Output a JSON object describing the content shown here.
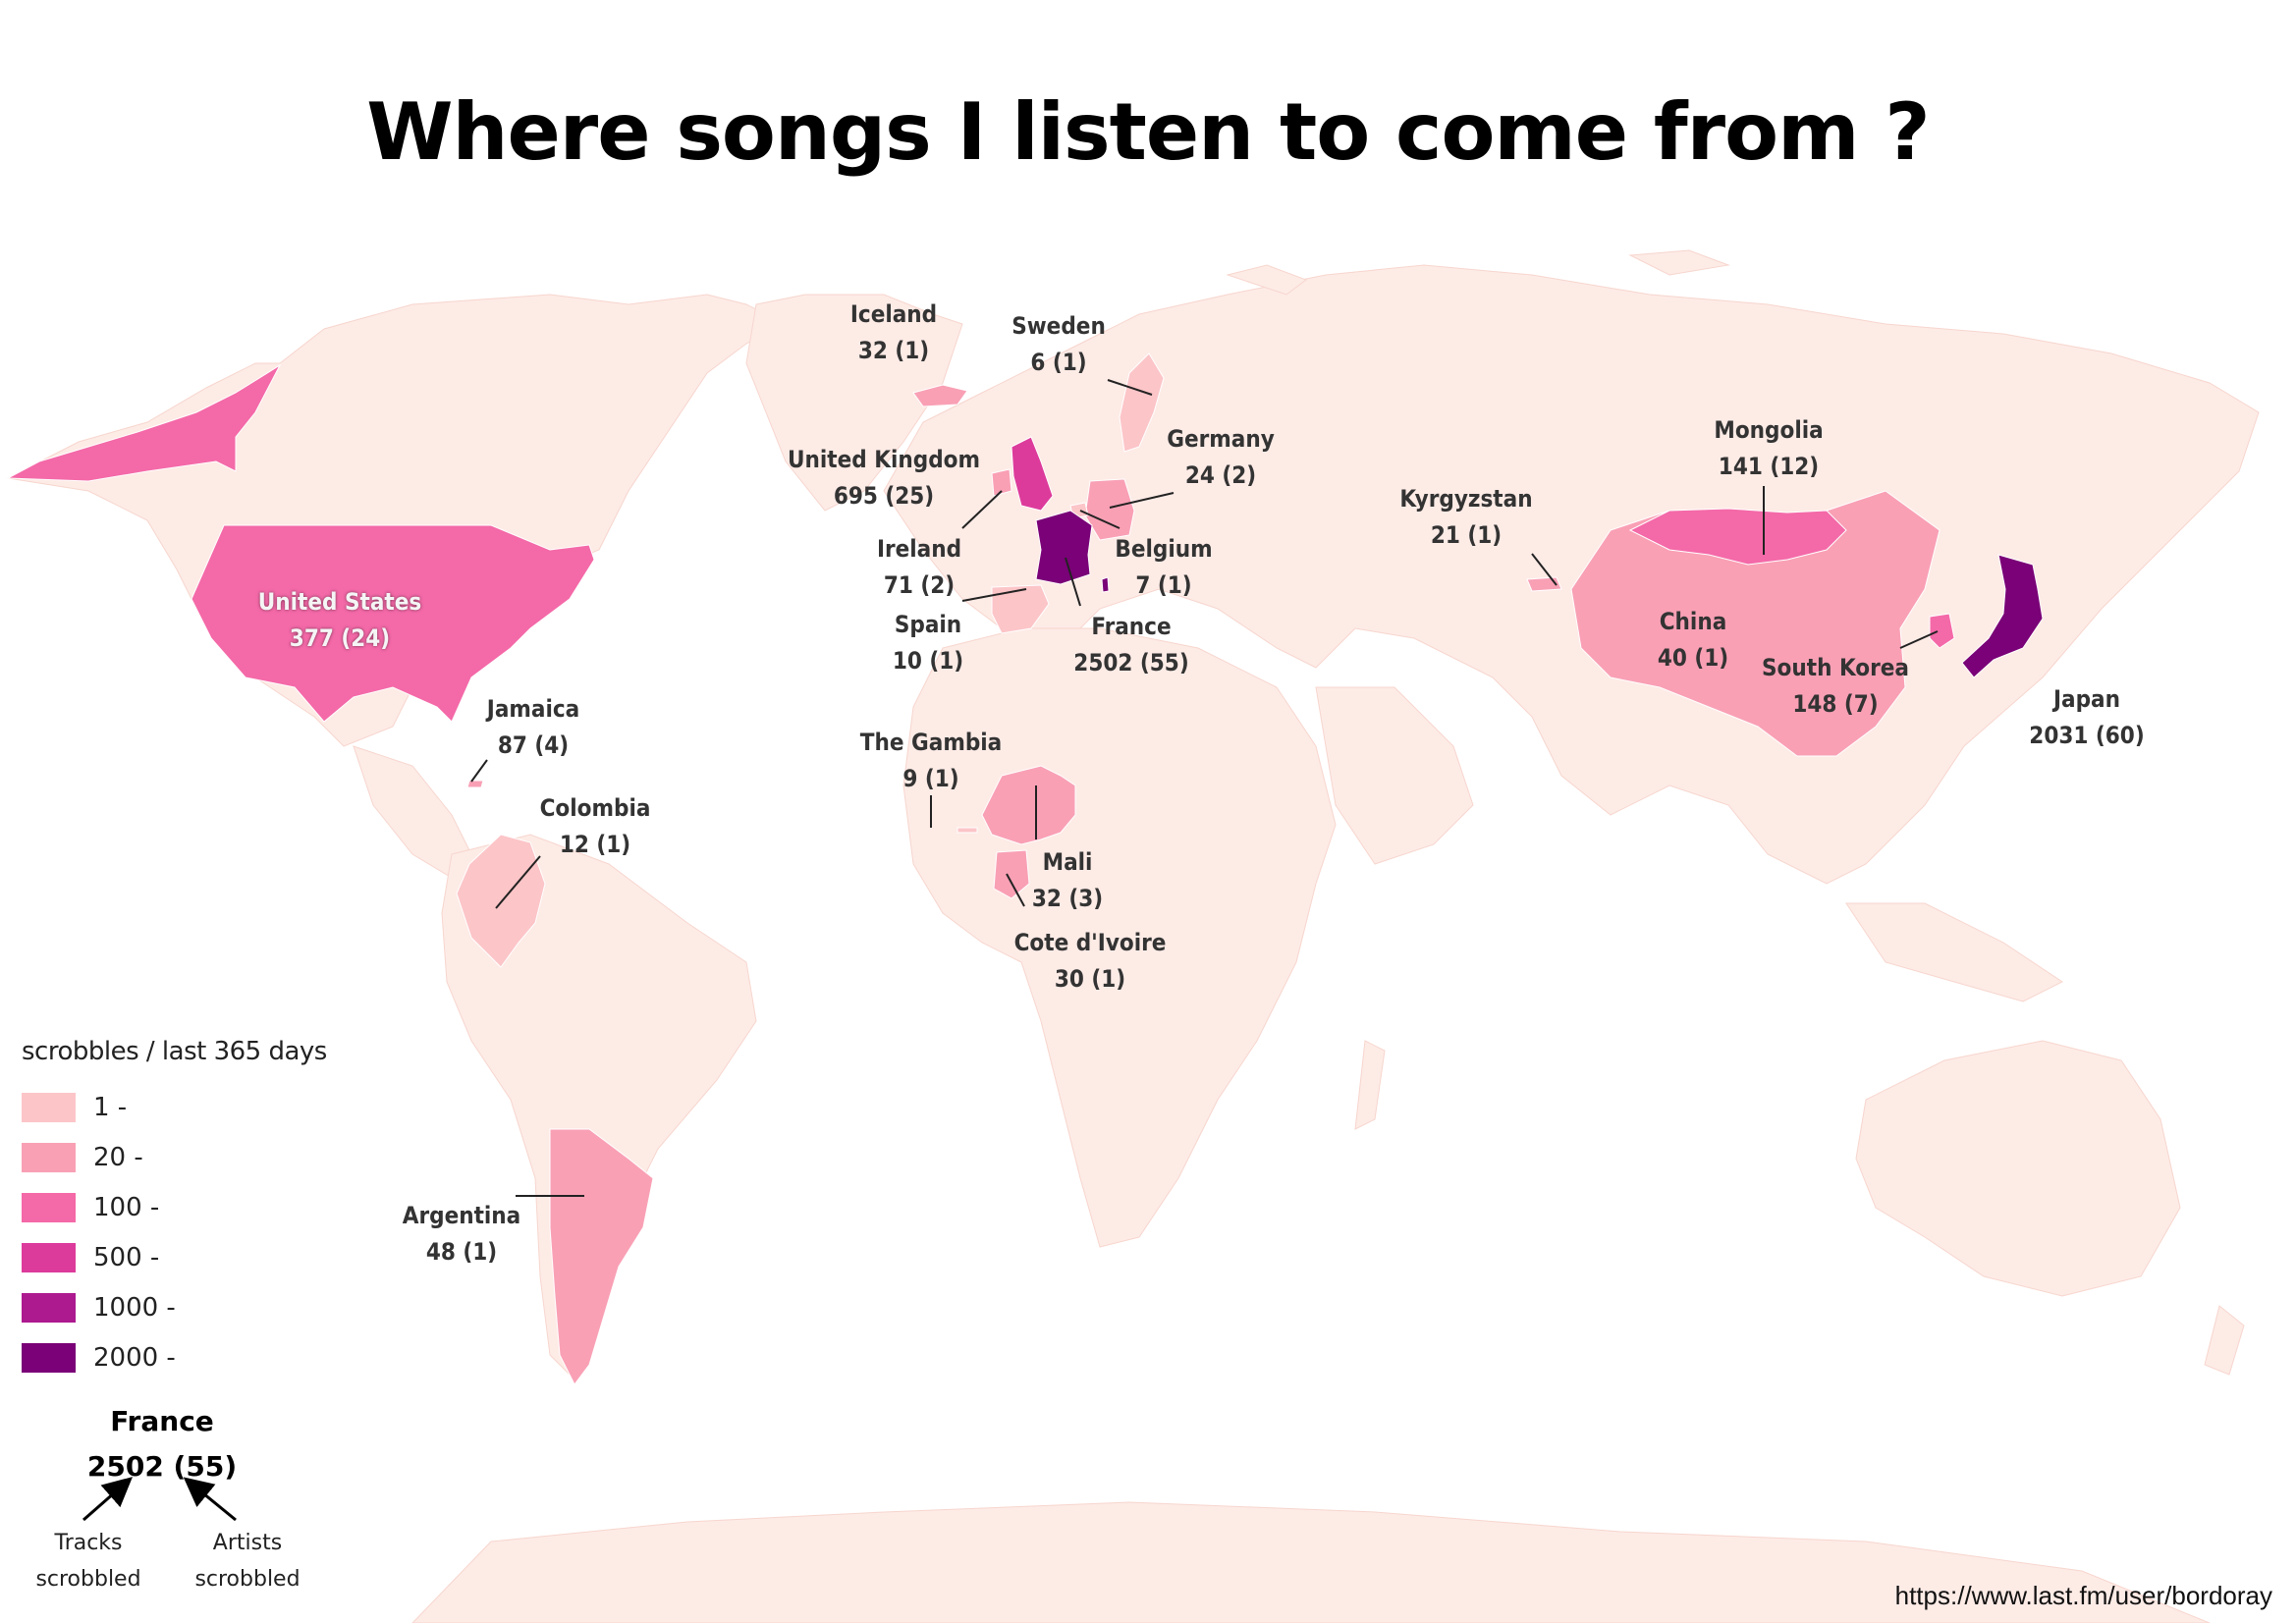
{
  "title": "Where songs I listen to come from ?",
  "colors": {
    "background": "#ffffff",
    "land_default": "#fdebe6",
    "tier_1": "#fcc5c8",
    "tier_20": "#f9a0b5",
    "tier_100": "#f469a8",
    "tier_500": "#dd3b9b",
    "tier_1000": "#ad1a8f",
    "tier_2000": "#7a0177",
    "leader_line": "#222222"
  },
  "legend": {
    "title": "scrobbles / last 365 days",
    "items": [
      {
        "label": "1 -",
        "color": "#fcc5c8"
      },
      {
        "label": "20 -",
        "color": "#f9a0b5"
      },
      {
        "label": "100 -",
        "color": "#f469a8"
      },
      {
        "label": "500 -",
        "color": "#dd3b9b"
      },
      {
        "label": "1000 -",
        "color": "#ad1a8f"
      },
      {
        "label": "2000 -",
        "color": "#7a0177"
      }
    ]
  },
  "countries": {
    "united_states": {
      "name": "United States",
      "value": "377 (24)",
      "tracks": 377,
      "artists": 24
    },
    "jamaica": {
      "name": "Jamaica",
      "value": "87 (4)",
      "tracks": 87,
      "artists": 4
    },
    "colombia": {
      "name": "Colombia",
      "value": "12 (1)",
      "tracks": 12,
      "artists": 1
    },
    "argentina": {
      "name": "Argentina",
      "value": "48 (1)",
      "tracks": 48,
      "artists": 1
    },
    "iceland": {
      "name": "Iceland",
      "value": "32 (1)",
      "tracks": 32,
      "artists": 1
    },
    "sweden": {
      "name": "Sweden",
      "value": "6 (1)",
      "tracks": 6,
      "artists": 1
    },
    "united_kingdom": {
      "name": "United Kingdom",
      "value": "695 (25)",
      "tracks": 695,
      "artists": 25
    },
    "germany": {
      "name": "Germany",
      "value": "24 (2)",
      "tracks": 24,
      "artists": 2
    },
    "ireland": {
      "name": "Ireland",
      "value": "71 (2)",
      "tracks": 71,
      "artists": 2
    },
    "belgium": {
      "name": "Belgium",
      "value": "7 (1)",
      "tracks": 7,
      "artists": 1
    },
    "spain": {
      "name": "Spain",
      "value": "10 (1)",
      "tracks": 10,
      "artists": 1
    },
    "france": {
      "name": "France",
      "value": "2502 (55)",
      "tracks": 2502,
      "artists": 55
    },
    "the_gambia": {
      "name": "The Gambia",
      "value": "9 (1)",
      "tracks": 9,
      "artists": 1
    },
    "mali": {
      "name": "Mali",
      "value": "32 (3)",
      "tracks": 32,
      "artists": 3
    },
    "cote_divoire": {
      "name": "Cote d'Ivoire",
      "value": "30 (1)",
      "tracks": 30,
      "artists": 1
    },
    "kyrgyzstan": {
      "name": "Kyrgyzstan",
      "value": "21 (1)",
      "tracks": 21,
      "artists": 1
    },
    "mongolia": {
      "name": "Mongolia",
      "value": "141 (12)",
      "tracks": 141,
      "artists": 12
    },
    "china": {
      "name": "China",
      "value": "40 (1)",
      "tracks": 40,
      "artists": 1
    },
    "south_korea": {
      "name": "South Korea",
      "value": "148 (7)",
      "tracks": 148,
      "artists": 7
    },
    "japan": {
      "name": "Japan",
      "value": "2031 (60)",
      "tracks": 2031,
      "artists": 60
    }
  },
  "example": {
    "country": "France",
    "value": "2502 (55)",
    "tracks_line1": "Tracks",
    "tracks_line2": "scrobbled",
    "artists_line1": "Artists",
    "artists_line2": "scrobbled"
  },
  "source": "https://www.last.fm/user/bordoray"
}
